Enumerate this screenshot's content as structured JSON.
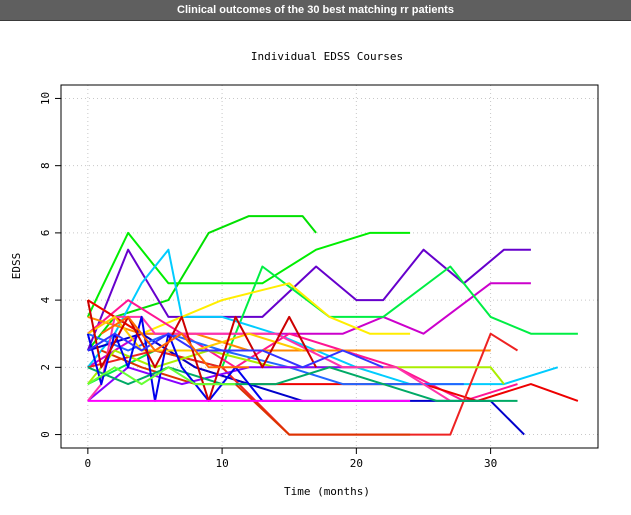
{
  "window": {
    "title": "Clinical outcomes of the 30 best matching rr patients"
  },
  "chart_data": {
    "type": "line",
    "title": "Individual EDSS Courses",
    "xlabel": "Time (months)",
    "ylabel": "EDSS",
    "xlim": [
      -2,
      38
    ],
    "ylim": [
      -0.4,
      10.4
    ],
    "xticks": [
      0,
      10,
      20,
      30
    ],
    "yticks": [
      0,
      2,
      4,
      6,
      8,
      10
    ],
    "grid": true,
    "series": [
      {
        "color": "#00e000",
        "x": [
          0,
          2,
          6,
          9,
          12,
          16,
          17
        ],
        "y": [
          2.5,
          3.5,
          4,
          6,
          6.5,
          6.5,
          6
        ]
      },
      {
        "color": "#00ee00",
        "x": [
          0,
          3,
          6,
          13,
          17,
          21,
          24
        ],
        "y": [
          3.5,
          6,
          4.5,
          4.5,
          5.5,
          6,
          6
        ]
      },
      {
        "color": "#6600cc",
        "x": [
          0,
          3,
          6,
          9,
          13,
          17,
          20,
          22,
          25,
          28,
          31,
          33
        ],
        "y": [
          2.5,
          5.5,
          3.5,
          3.5,
          3.5,
          5,
          4,
          4,
          5.5,
          4.5,
          5.5,
          5.5
        ]
      },
      {
        "color": "#cc00cc",
        "x": [
          0,
          4,
          9,
          14,
          19,
          22,
          25,
          30,
          33
        ],
        "y": [
          2,
          3,
          3,
          3,
          3,
          3.5,
          3,
          4.5,
          4.5
        ]
      },
      {
        "color": "#00ee44",
        "x": [
          0,
          5,
          10,
          13,
          18,
          22,
          27,
          30,
          33,
          36.5
        ],
        "y": [
          1.5,
          2.5,
          2,
          5,
          3.5,
          3.5,
          5,
          3.5,
          3,
          3
        ]
      },
      {
        "color": "#00ccff",
        "x": [
          0,
          2,
          4,
          6,
          7,
          10,
          14,
          17,
          20,
          24,
          28,
          31,
          35
        ],
        "y": [
          2,
          3,
          4.5,
          5.5,
          3.5,
          3.5,
          3,
          2.5,
          2,
          1.5,
          1.5,
          1.5,
          2
        ]
      },
      {
        "color": "#ffee00",
        "x": [
          0,
          4,
          7,
          10,
          15,
          18,
          21,
          24
        ],
        "y": [
          4,
          3,
          3.5,
          4,
          4.5,
          3.5,
          3,
          3
        ]
      },
      {
        "color": "#ff1493",
        "x": [
          0,
          3,
          7,
          11,
          15,
          19,
          23,
          28,
          32
        ],
        "y": [
          3,
          4,
          3,
          2,
          3,
          2.5,
          2,
          1,
          1.5
        ]
      },
      {
        "color": "#ee0000",
        "x": [
          0,
          4,
          8,
          12,
          16,
          20,
          25,
          29,
          33,
          36.5
        ],
        "y": [
          4,
          3,
          2,
          1.5,
          1.5,
          1.5,
          1.5,
          1,
          1.5,
          1
        ]
      },
      {
        "color": "#0000cc",
        "x": [
          0,
          4,
          8,
          12,
          16,
          20,
          26,
          30,
          32.5
        ],
        "y": [
          2.5,
          3,
          2,
          1.5,
          1,
          1,
          1,
          1,
          0
        ]
      },
      {
        "color": "#ff8800",
        "x": [
          0,
          4,
          8,
          12,
          16,
          20,
          24,
          30
        ],
        "y": [
          3.5,
          3,
          3,
          2.5,
          2.5,
          2.5,
          2.5,
          2.5
        ]
      },
      {
        "color": "#ee2222",
        "x": [
          0,
          5,
          10,
          15,
          18,
          22,
          27,
          30,
          32
        ],
        "y": [
          2,
          2.5,
          2,
          0,
          0,
          0,
          0,
          3,
          2.5
        ]
      },
      {
        "color": "#dd3300",
        "x": [
          1,
          4,
          8,
          11,
          15,
          20,
          24
        ],
        "y": [
          2.5,
          2,
          1.5,
          1.5,
          0,
          0,
          0
        ]
      },
      {
        "color": "#2266ff",
        "x": [
          0,
          3,
          6,
          10,
          15,
          19,
          24,
          28
        ],
        "y": [
          3,
          2.5,
          3,
          2.5,
          2,
          1.5,
          1.5,
          1.5
        ]
      },
      {
        "color": "#aaee00",
        "x": [
          0,
          2,
          5,
          9,
          14,
          20,
          26,
          30,
          31
        ],
        "y": [
          1.5,
          2.5,
          2,
          2.5,
          2,
          2,
          2,
          2,
          1.5
        ]
      },
      {
        "color": "#8800ff",
        "x": [
          0,
          3,
          7,
          12,
          16,
          20
        ],
        "y": [
          1,
          2,
          1.5,
          2,
          2,
          2
        ]
      },
      {
        "color": "#ff33aa",
        "x": [
          0,
          1,
          2,
          4,
          5,
          7,
          10,
          14,
          19,
          23,
          27
        ],
        "y": [
          1,
          1.5,
          3.5,
          3.5,
          3,
          3,
          3,
          3,
          2,
          2,
          1
        ]
      },
      {
        "color": "#ffcc00",
        "x": [
          0,
          2,
          4,
          8,
          12,
          16
        ],
        "y": [
          3,
          3.5,
          2.5,
          2.5,
          3,
          2.5
        ]
      },
      {
        "color": "#00aa66",
        "x": [
          0,
          3,
          6,
          10,
          14,
          18,
          22,
          26,
          30,
          32
        ],
        "y": [
          2,
          1.5,
          2,
          1.5,
          1.5,
          2,
          1.5,
          1,
          1,
          1
        ]
      },
      {
        "color": "#0000ee",
        "x": [
          0,
          1,
          2,
          3,
          4,
          5,
          6,
          7,
          9,
          11,
          13,
          16
        ],
        "y": [
          3,
          1.5,
          3,
          2,
          3.5,
          1,
          3,
          2,
          1,
          2,
          1,
          1
        ]
      },
      {
        "color": "#cc0000",
        "x": [
          0,
          1,
          3,
          5,
          7,
          9,
          11,
          13,
          15,
          17
        ],
        "y": [
          4,
          2,
          3.5,
          2,
          3.5,
          1,
          3.5,
          2,
          3.5,
          2
        ]
      },
      {
        "color": "#3333ff",
        "x": [
          0,
          2,
          4,
          6,
          8,
          10,
          13,
          16,
          19,
          22
        ],
        "y": [
          2.5,
          3,
          2.5,
          3,
          2.5,
          2.5,
          2.5,
          2,
          2.5,
          2
        ]
      },
      {
        "color": "#ff00ff",
        "x": [
          0,
          1,
          3,
          5,
          8,
          11,
          14,
          17,
          21,
          24
        ],
        "y": [
          1,
          1,
          1,
          1,
          1,
          1,
          1,
          1,
          1,
          1
        ]
      },
      {
        "color": "#66ff33",
        "x": [
          0,
          2,
          4,
          6,
          8,
          11
        ],
        "y": [
          1.5,
          2,
          1.5,
          2,
          1.5,
          1.5
        ]
      },
      {
        "color": "#ff6600",
        "x": [
          1,
          3,
          5,
          7,
          9,
          12
        ],
        "y": [
          3,
          3.5,
          2.5,
          3,
          2,
          2
        ]
      }
    ]
  }
}
